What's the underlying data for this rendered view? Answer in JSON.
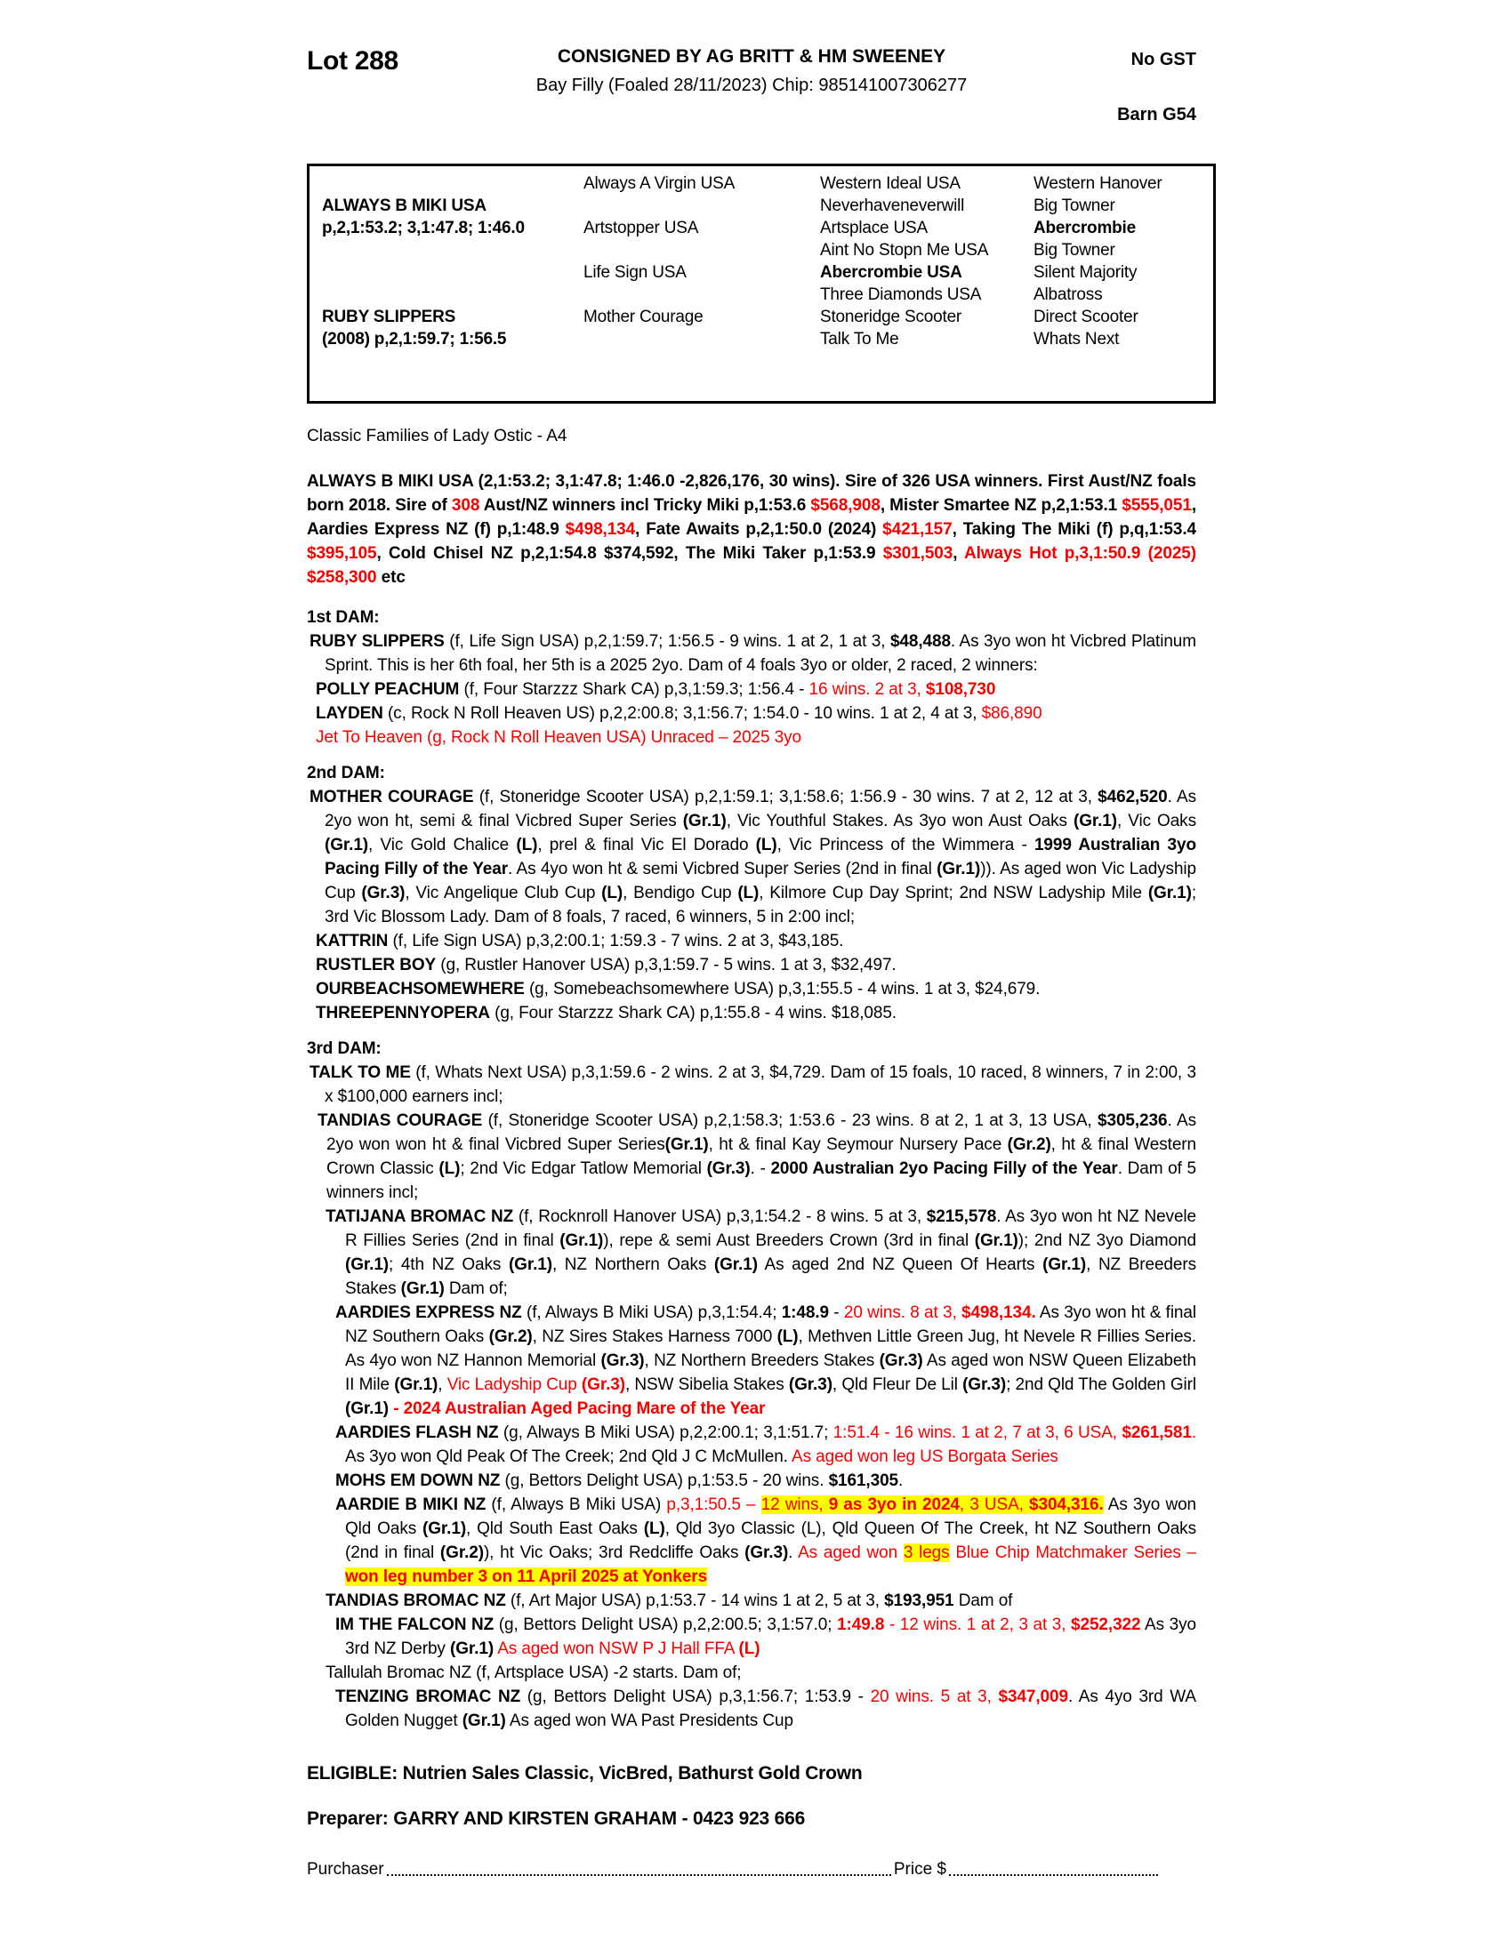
{
  "colors": {
    "accent_red": "#f60000",
    "highlight_yellow": "#ffff00",
    "text": "#000000"
  },
  "header": {
    "lot": "Lot 288",
    "consigned": "CONSIGNED BY AG BRITT & HM SWEENEY",
    "no_gst": "No GST",
    "subtitle": "Bay Filly (Foaled 28/11/2023) Chip: 985141007306277",
    "barn": "Barn G54"
  },
  "pedigree": {
    "sire": {
      "name": "ALWAYS B MIKI USA",
      "record": "p,2,1:53.2; 3,1:47.8; 1:46.0"
    },
    "dam": {
      "name": "RUBY SLIPPERS",
      "record": "(2008) p,2,1:59.7; 1:56.5"
    },
    "col2": [
      {
        "t": "Always A Virgin USA"
      },
      {
        "t": "Artstopper USA"
      },
      {
        "t": "Life Sign USA"
      },
      {
        "t": "Mother Courage"
      }
    ],
    "col3": [
      {
        "t": "Western Ideal USA"
      },
      {
        "t": "Neverhaveneverwill"
      },
      {
        "t": "Artsplace USA"
      },
      {
        "t": "Aint No Stopn Me USA"
      },
      {
        "t": "Abercrombie USA",
        "b": true
      },
      {
        "t": "Three Diamonds USA"
      },
      {
        "t": "Stoneridge Scooter"
      },
      {
        "t": "Talk To Me"
      }
    ],
    "col4": [
      {
        "t": "Western Hanover"
      },
      {
        "t": "Big Towner"
      },
      {
        "t": "Abercrombie",
        "b": true
      },
      {
        "t": "Big Towner"
      },
      {
        "t": "Silent Majority"
      },
      {
        "t": "Albatross"
      },
      {
        "t": "Direct Scooter"
      },
      {
        "t": "Whats Next"
      }
    ]
  },
  "family_line": "Classic Families of Lady Ostic - A4",
  "paragraphs": [
    {
      "name": "sire-summary",
      "cls": "lvl0",
      "segs": [
        [
          "b",
          "ALWAYS B MIKI USA (2,1:53.2; 3,1:47.8; 1:46.0 -2,826,176, 30 wins). Sire of 326 USA winners. First Aust/NZ foals born 2018. Sire of "
        ],
        [
          "rb",
          "308"
        ],
        [
          "b",
          " Aust/NZ winners incl Tricky Miki p,1:53.6 "
        ],
        [
          "rb",
          "$568,908"
        ],
        [
          "b",
          ", Mister Smartee NZ p,2,1:53.1 "
        ],
        [
          "rb",
          "$555,051"
        ],
        [
          "b",
          ", Aardies Express NZ (f) p,1:48.9 "
        ],
        [
          "rb",
          "$498,134"
        ],
        [
          "b",
          ", Fate Awaits p,2,1:50.0 (2024) "
        ],
        [
          "rb",
          "$421,157"
        ],
        [
          "b",
          ", Taking The Miki (f) p,q,1:53.4 "
        ],
        [
          "rb",
          "$395,105"
        ],
        [
          "b",
          ", Cold Chisel NZ p,2,1:54.8 $374,592, The Miki Taker p,1:53.9 "
        ],
        [
          "rb",
          "$301,503"
        ],
        [
          "b",
          ", "
        ],
        [
          "rb",
          "Always Hot p,3,1:50.9 (2025) $258,300"
        ],
        [
          "b",
          " etc"
        ]
      ]
    },
    {
      "name": "dam1-heading",
      "cls": "head",
      "segs": [
        [
          "b",
          "1st DAM:"
        ]
      ]
    },
    {
      "name": "ruby-slippers-entry",
      "cls": "l1",
      "segs": [
        [
          "b",
          "RUBY SLIPPERS"
        ],
        [
          "n",
          " (f, Life Sign USA) p,2,1:59.7; 1:56.5 - 9 wins. 1 at 2, 1 at 3, "
        ],
        [
          "b",
          "$48,488"
        ],
        [
          "n",
          ". As 3yo won ht Vicbred Platinum Sprint. This is her 6th foal, her 5th is a 2025 2yo. Dam of 4 foals 3yo or older, 2 raced, 2 winners:"
        ]
      ]
    },
    {
      "name": "polly-peachum-entry",
      "cls": "l2",
      "segs": [
        [
          "b",
          "POLLY PEACHUM"
        ],
        [
          "n",
          " (f, Four Starzzz Shark CA) p,3,1:59.3; 1:56.4 - "
        ],
        [
          "r",
          "16 wins. 2 at 3, "
        ],
        [
          "rb",
          "$108,730"
        ]
      ]
    },
    {
      "name": "layden-entry",
      "cls": "l2",
      "segs": [
        [
          "b",
          "LAYDEN"
        ],
        [
          "n",
          " (c, Rock N Roll Heaven US) p,2,2:00.8; 3,1:56.7; 1:54.0 - 10 wins. 1 at 2, 4 at 3, "
        ],
        [
          "r",
          "$86,890"
        ]
      ]
    },
    {
      "name": "jet-to-heaven-entry",
      "cls": "l2",
      "segs": [
        [
          "r",
          "Jet To Heaven (g, Rock N Roll Heaven USA) Unraced – 2025 3yo"
        ]
      ]
    },
    {
      "name": "dam2-heading",
      "cls": "head",
      "segs": [
        [
          "b",
          "2nd DAM:"
        ]
      ]
    },
    {
      "name": "mother-courage-entry",
      "cls": "l1",
      "segs": [
        [
          "b",
          "MOTHER COURAGE"
        ],
        [
          "n",
          " (f, Stoneridge Scooter USA) p,2,1:59.1; 3,1:58.6; 1:56.9 - 30 wins. 7 at 2, 12 at 3, "
        ],
        [
          "b",
          "$462,520"
        ],
        [
          "n",
          ". As 2yo won ht, semi & final Vicbred Super Series "
        ],
        [
          "b",
          "(Gr.1)"
        ],
        [
          "n",
          ", Vic Youthful Stakes. As 3yo won Aust Oaks "
        ],
        [
          "b",
          "(Gr.1)"
        ],
        [
          "n",
          ", Vic Oaks "
        ],
        [
          "b",
          "(Gr.1)"
        ],
        [
          "n",
          ", Vic Gold Chalice "
        ],
        [
          "b",
          "(L)"
        ],
        [
          "n",
          ", prel & final Vic El Dorado "
        ],
        [
          "b",
          "(L)"
        ],
        [
          "n",
          ", Vic Princess of the Wimmera - "
        ],
        [
          "b",
          "1999 Australian 3yo Pacing Filly of the Year"
        ],
        [
          "n",
          ". As 4yo won ht & semi Vicbred Super Series (2nd in final "
        ],
        [
          "b",
          "(Gr.1)"
        ],
        [
          "n",
          ")). As aged won Vic Ladyship Cup "
        ],
        [
          "b",
          "(Gr.3)"
        ],
        [
          "n",
          ", Vic Angelique Club Cup "
        ],
        [
          "b",
          "(L)"
        ],
        [
          "n",
          ", Bendigo Cup "
        ],
        [
          "b",
          "(L)"
        ],
        [
          "n",
          ", Kilmore Cup Day Sprint; 2nd NSW Ladyship Mile "
        ],
        [
          "b",
          "(Gr.1)"
        ],
        [
          "n",
          "; 3rd Vic Blossom Lady. Dam of 8 foals, 7 raced, 6 winners, 5 in 2:00 incl;"
        ]
      ]
    },
    {
      "name": "kattrin-entry",
      "cls": "l2",
      "segs": [
        [
          "b",
          "KATTRIN"
        ],
        [
          "n",
          " (f, Life Sign USA) p,3,2:00.1; 1:59.3 - 7 wins. 2 at 3, $43,185."
        ]
      ]
    },
    {
      "name": "rustler-boy-entry",
      "cls": "l2",
      "segs": [
        [
          "b",
          "RUSTLER BOY"
        ],
        [
          "n",
          " (g, Rustler Hanover USA) p,3,1:59.7 - 5 wins. 1 at 3, $32,497."
        ]
      ]
    },
    {
      "name": "ourbeachsomewhere-entry",
      "cls": "l2",
      "segs": [
        [
          "b",
          "OURBEACHSOMEWHERE"
        ],
        [
          "n",
          " (g, Somebeachsomewhere USA) p,3,1:55.5 - 4 wins. 1 at 3, $24,679."
        ]
      ]
    },
    {
      "name": "threepennyopera-entry",
      "cls": "l2",
      "segs": [
        [
          "b",
          "THREEPENNYOPERA"
        ],
        [
          "n",
          " (g, Four Starzzz Shark CA) p,1:55.8 - 4 wins. $18,085."
        ]
      ]
    },
    {
      "name": "dam3-heading",
      "cls": "head",
      "segs": [
        [
          "b",
          "3rd DAM:"
        ]
      ]
    },
    {
      "name": "talk-to-me-entry",
      "cls": "l1",
      "segs": [
        [
          "b",
          "TALK TO ME"
        ],
        [
          "n",
          " (f, Whats Next USA) p,3,1:59.6 - 2 wins. 2 at 3, $4,729. Dam of 15 foals, 10 raced, 8 winners, 7 in 2:00, 3 x $100,000 earners incl;"
        ]
      ]
    },
    {
      "name": "tandias-courage-entry",
      "cls": "l2c",
      "segs": [
        [
          "b",
          "TANDIAS COURAGE"
        ],
        [
          "n",
          " (f, Stoneridge Scooter USA) p,2,1:58.3; 1:53.6 - 23 wins. 8 at 2, 1 at 3, 13 USA, "
        ],
        [
          "b",
          "$305,236"
        ],
        [
          "n",
          ". As 2yo won won ht & final Vicbred Super Series"
        ],
        [
          "b",
          "(Gr.1)"
        ],
        [
          "n",
          ", ht & final Kay Seymour Nursery Pace "
        ],
        [
          "b",
          "(Gr.2)"
        ],
        [
          "n",
          ", ht & final Western Crown Classic "
        ],
        [
          "b",
          "(L)"
        ],
        [
          "n",
          "; 2nd Vic Edgar Tatlow Memorial "
        ],
        [
          "b",
          "(Gr.3)"
        ],
        [
          "n",
          ". - "
        ],
        [
          "b",
          "2000 Australian 2yo Pacing Filly of the Year"
        ],
        [
          "n",
          ". Dam of 5 winners incl;"
        ]
      ]
    },
    {
      "name": "tatijana-bromac-entry",
      "cls": "l3",
      "segs": [
        [
          "b",
          "TATIJANA BROMAC NZ"
        ],
        [
          "n",
          " (f, Rocknroll Hanover USA) p,3,1:54.2 - 8 wins. 5 at 3, "
        ],
        [
          "b",
          "$215,578"
        ],
        [
          "n",
          ". As 3yo won ht NZ Nevele R Fillies Series (2nd in final "
        ],
        [
          "b",
          "(Gr.1)"
        ],
        [
          "n",
          "), repe & semi Aust Breeders Crown (3rd in final "
        ],
        [
          "b",
          "(Gr.1)"
        ],
        [
          "n",
          "); 2nd NZ 3yo Diamond "
        ],
        [
          "b",
          "(Gr.1)"
        ],
        [
          "n",
          "; 4th NZ Oaks "
        ],
        [
          "b",
          "(Gr.1)"
        ],
        [
          "n",
          ", NZ Northern Oaks "
        ],
        [
          "b",
          "(Gr.1)"
        ],
        [
          "n",
          " As aged 2nd NZ Queen Of Hearts "
        ],
        [
          "b",
          "(Gr.1)"
        ],
        [
          "n",
          ", NZ Breeders Stakes "
        ],
        [
          "b",
          "(Gr.1)"
        ],
        [
          "n",
          " Dam of;"
        ]
      ]
    },
    {
      "name": "aardies-express-entry",
      "cls": "l4",
      "segs": [
        [
          "b",
          "AARDIES EXPRESS NZ"
        ],
        [
          "n",
          " (f, Always B Miki USA) p,3,1:54.4; "
        ],
        [
          "b",
          "1:48.9"
        ],
        [
          "n",
          " - "
        ],
        [
          "r",
          "20 wins. 8 at 3, "
        ],
        [
          "rb",
          "$498,134."
        ],
        [
          "n",
          " As 3yo won ht & final NZ Southern Oaks "
        ],
        [
          "b",
          "(Gr.2)"
        ],
        [
          "n",
          ", NZ Sires Stakes Harness 7000 "
        ],
        [
          "b",
          "(L)"
        ],
        [
          "n",
          ", Methven Little Green Jug, ht Nevele R Fillies Series. As 4yo won NZ Hannon Memorial "
        ],
        [
          "b",
          "(Gr.3)"
        ],
        [
          "n",
          ", NZ Northern Breeders Stakes "
        ],
        [
          "b",
          "(Gr.3)"
        ],
        [
          "n",
          " As aged won NSW Queen Elizabeth II Mile "
        ],
        [
          "b",
          "(Gr.1)"
        ],
        [
          "n",
          ", "
        ],
        [
          "r",
          "Vic Ladyship Cup "
        ],
        [
          "rb",
          "(Gr.3)"
        ],
        [
          "n",
          ", NSW Sibelia Stakes "
        ],
        [
          "b",
          "(Gr.3)"
        ],
        [
          "n",
          ", Qld Fleur De Lil "
        ],
        [
          "b",
          "(Gr.3)"
        ],
        [
          "n",
          "; 2nd Qld The Golden Girl "
        ],
        [
          "b",
          "(Gr.1)"
        ],
        [
          "n",
          " "
        ],
        [
          "rb",
          "- 2024 Australian Aged Pacing Mare of the Year"
        ]
      ]
    },
    {
      "name": "aardies-flash-entry",
      "cls": "l4",
      "segs": [
        [
          "b",
          "AARDIES FLASH NZ"
        ],
        [
          "n",
          " (g, Always B Miki USA) p,2,2:00.1; 3,1:51.7; "
        ],
        [
          "r",
          "1:51.4 - 16 wins. 1 at 2, 7 at 3, 6 USA, "
        ],
        [
          "rb",
          "$261,581"
        ],
        [
          "r",
          "."
        ],
        [
          "n",
          " As 3yo won Qld Peak Of The Creek; 2nd Qld J C McMullen. "
        ],
        [
          "r",
          "As aged won leg US Borgata Series"
        ]
      ]
    },
    {
      "name": "mohs-em-down-entry",
      "cls": "l4",
      "segs": [
        [
          "b",
          "MOHS EM DOWN NZ"
        ],
        [
          "n",
          " (g, Bettors Delight USA) p,1:53.5 - 20 wins. "
        ],
        [
          "b",
          "$161,305"
        ],
        [
          "n",
          "."
        ]
      ]
    },
    {
      "name": "aardie-b-miki-entry",
      "cls": "l4",
      "segs": [
        [
          "b",
          "AARDIE B MIKI NZ"
        ],
        [
          "n",
          " (f, Always B Miki USA) "
        ],
        [
          "r",
          "p,3,1:50.5 – "
        ],
        [
          "y",
          "12 wins, "
        ],
        [
          "yb",
          "9 as 3yo in 2024"
        ],
        [
          "y",
          ", 3 USA, "
        ],
        [
          "yb",
          "$304,316."
        ],
        [
          "n",
          " As 3yo won Qld Oaks "
        ],
        [
          "b",
          "(Gr.1)"
        ],
        [
          "n",
          ", Qld South East Oaks "
        ],
        [
          "b",
          "(L)"
        ],
        [
          "n",
          ", Qld 3yo Classic (L), Qld Queen Of The Creek, ht NZ Southern Oaks (2nd in final "
        ],
        [
          "b",
          "(Gr.2)"
        ],
        [
          "n",
          "), ht Vic Oaks; 3rd Redcliffe Oaks "
        ],
        [
          "b",
          "(Gr.3)"
        ],
        [
          "n",
          ". "
        ],
        [
          "r",
          "As aged won "
        ],
        [
          "y",
          "3 legs"
        ],
        [
          "r",
          " Blue Chip Matchmaker Series – "
        ],
        [
          "yb",
          "won leg number 3 on 11 April 2025 at Yonkers"
        ]
      ]
    },
    {
      "name": "tandias-bromac-entry",
      "cls": "l3",
      "segs": [
        [
          "b",
          "TANDIAS BROMAC NZ"
        ],
        [
          "n",
          " (f, Art Major USA) p,1:53.7 - 14 wins 1 at 2, 5 at 3, "
        ],
        [
          "b",
          "$193,951"
        ],
        [
          "n",
          " Dam of"
        ]
      ]
    },
    {
      "name": "im-the-falcon-entry",
      "cls": "l4",
      "segs": [
        [
          "b",
          "IM THE FALCON NZ"
        ],
        [
          "n",
          " (g, Bettors Delight USA) p,2,2:00.5; 3,1:57.0; "
        ],
        [
          "rb",
          "1:49.8"
        ],
        [
          "r",
          " - 12 wins. 1 at 2, 3 at 3, "
        ],
        [
          "rb",
          "$252,322"
        ],
        [
          "n",
          " As 3yo 3rd NZ Derby "
        ],
        [
          "b",
          "(Gr.1)"
        ],
        [
          "n",
          " "
        ],
        [
          "r",
          "As aged won NSW P J Hall FFA "
        ],
        [
          "rb",
          "(L)"
        ]
      ]
    },
    {
      "name": "tallulah-bromac-entry",
      "cls": "l3p",
      "segs": [
        [
          "n",
          "Tallulah Bromac NZ (f, Artsplace USA) -2 starts. Dam of;"
        ]
      ]
    },
    {
      "name": "tenzing-bromac-entry",
      "cls": "l4",
      "segs": [
        [
          "b",
          "TENZING BROMAC NZ"
        ],
        [
          "n",
          " (g, Bettors Delight USA) p,3,1:56.7; 1:53.9 - "
        ],
        [
          "r",
          "20 wins. 5 at 3, "
        ],
        [
          "rb",
          "$347,009"
        ],
        [
          "n",
          ". As 4yo 3rd WA Golden Nugget "
        ],
        [
          "b",
          "(Gr.1)"
        ],
        [
          "n",
          " As aged won WA Past Presidents Cup"
        ]
      ]
    }
  ],
  "footer": {
    "eligible": "ELIGIBLE: Nutrien Sales Classic, VicBred, Bathurst Gold Crown",
    "preparer": "Preparer: GARRY AND KIRSTEN GRAHAM - 0423 923 666",
    "purchaser_label": "Purchaser",
    "price_label": "Price $"
  }
}
